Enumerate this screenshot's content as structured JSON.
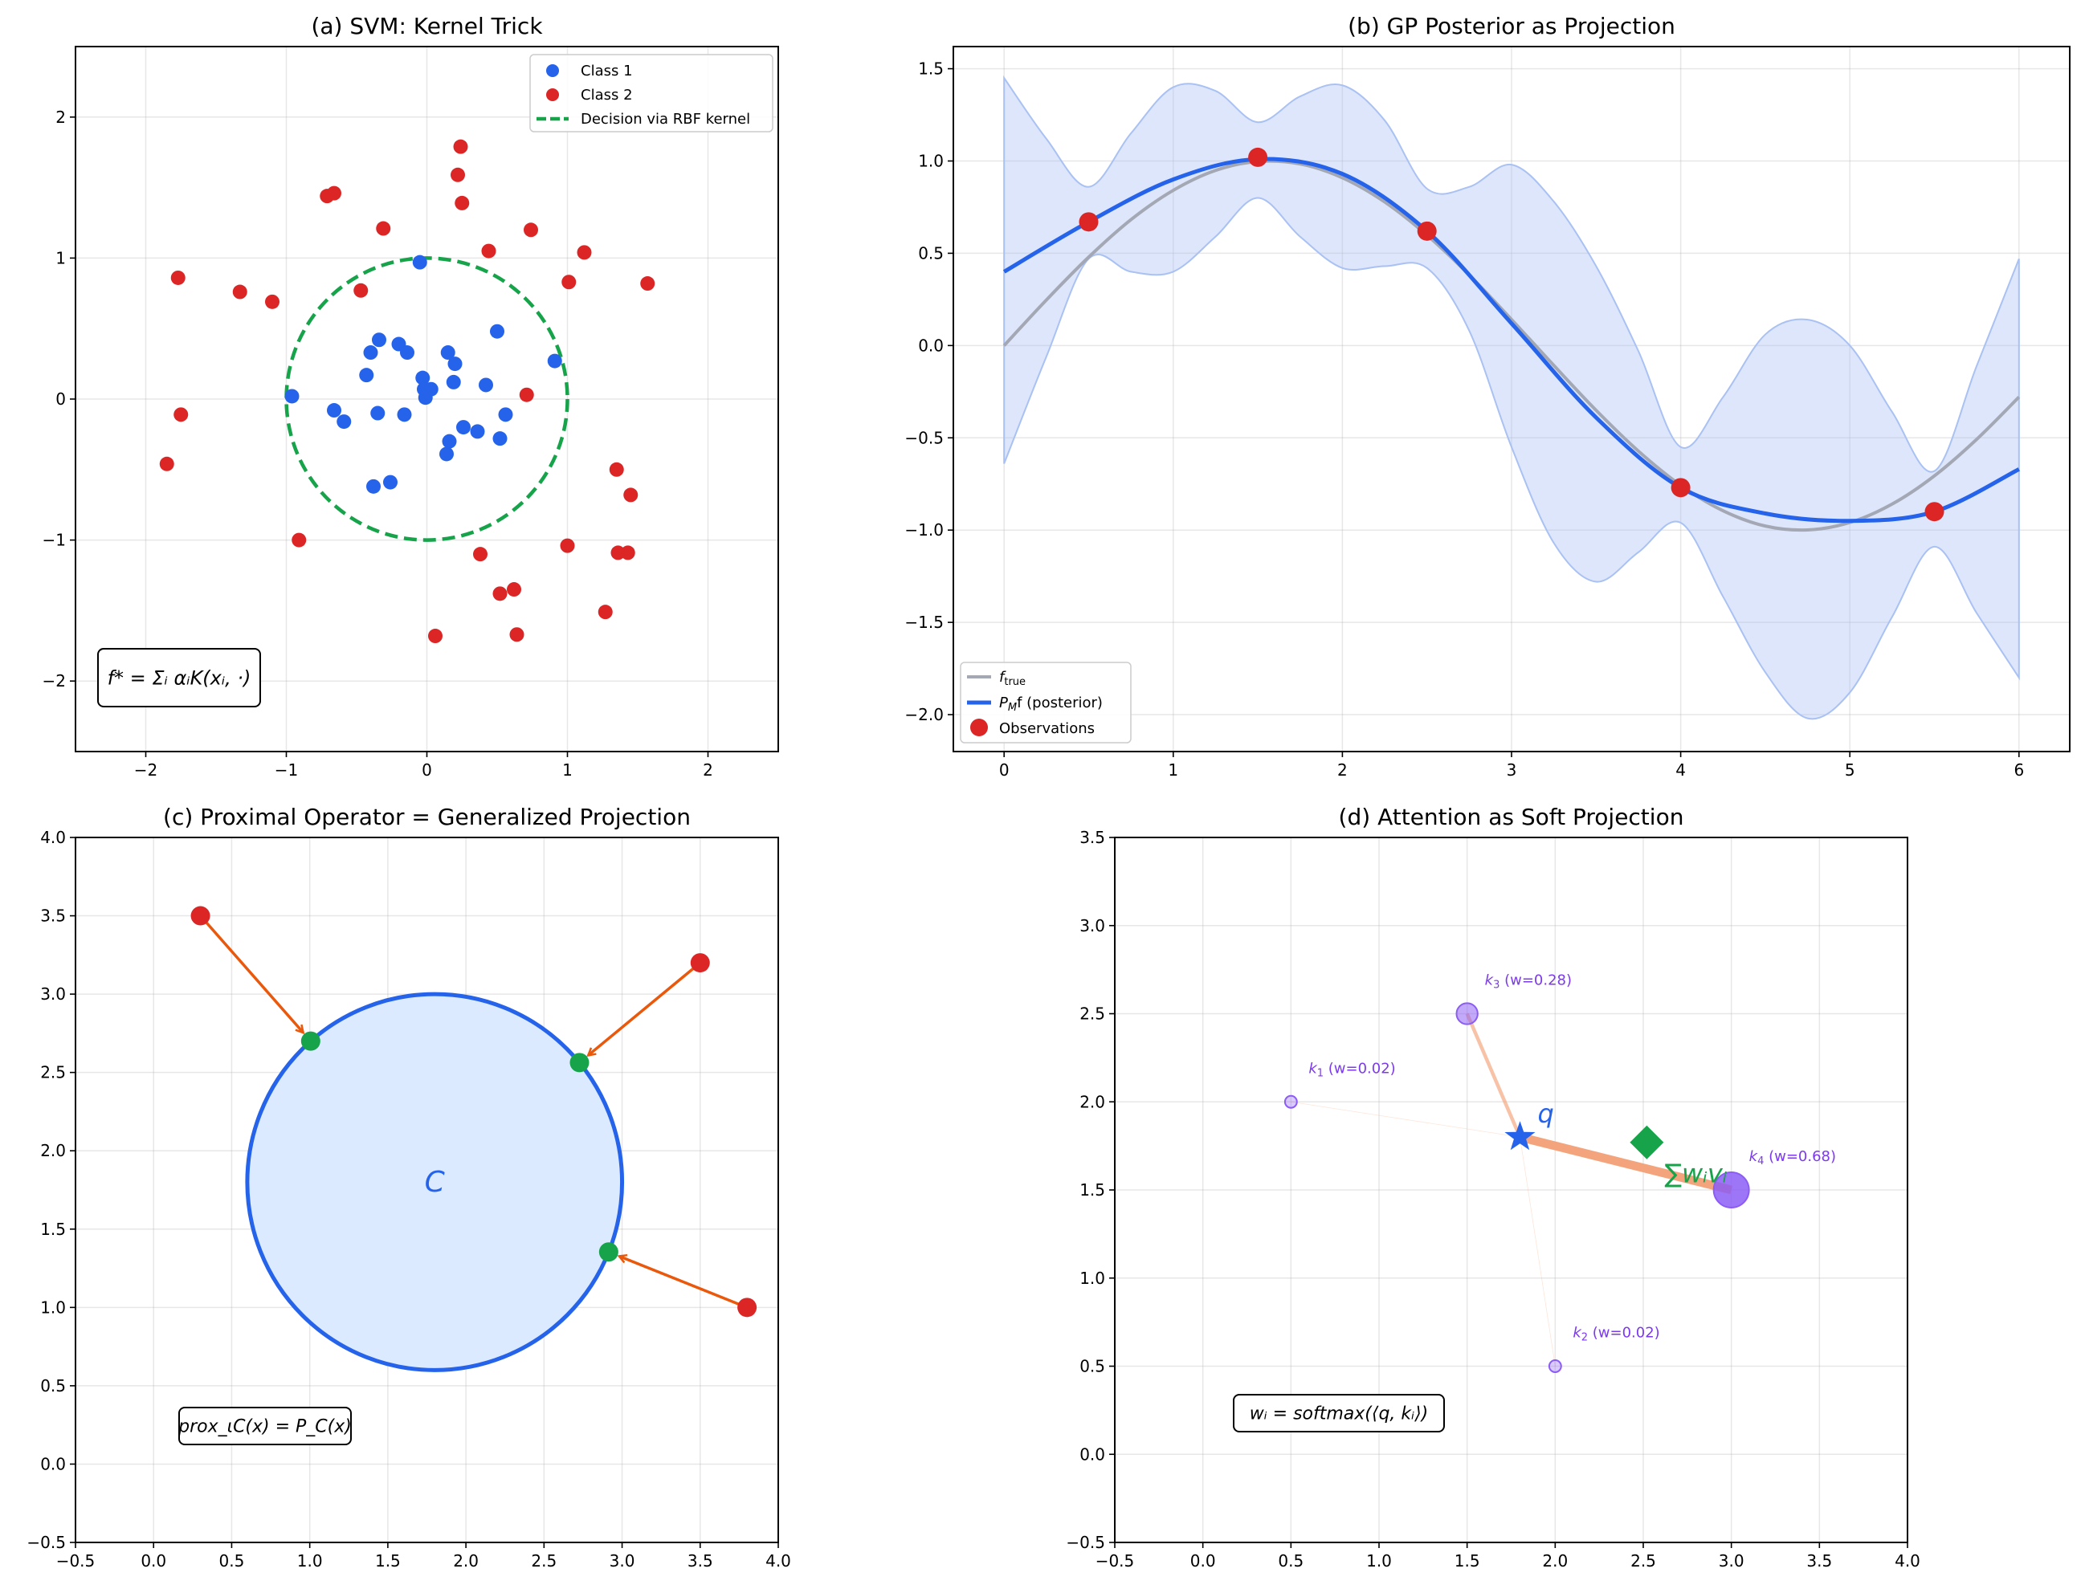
{
  "chart_data": [
    {
      "type": "scatter",
      "title": "(a) SVM: Kernel Trick",
      "xlim": [
        -2.5,
        2.5
      ],
      "ylim": [
        -2.5,
        2.5
      ],
      "xticks": [
        -2,
        -1,
        0,
        1,
        2
      ],
      "yticks": [
        -2,
        -1,
        0,
        1,
        2
      ],
      "xtick_labels": [
        "−2",
        "−1",
        "0",
        "1",
        "2"
      ],
      "ytick_labels": [
        "−2",
        "−1",
        "0",
        "1",
        "2"
      ],
      "grid": true,
      "legend_position": "top-right",
      "series": [
        {
          "name": "Class 1",
          "color": "#2563eb",
          "points": [
            [
              -0.05,
              0.97
            ],
            [
              0.5,
              0.48
            ],
            [
              0.91,
              0.27
            ],
            [
              -0.34,
              0.42
            ],
            [
              -0.4,
              0.33
            ],
            [
              -0.2,
              0.39
            ],
            [
              -0.14,
              0.33
            ],
            [
              0.15,
              0.33
            ],
            [
              0.2,
              0.25
            ],
            [
              -0.43,
              0.17
            ],
            [
              -0.03,
              0.15
            ],
            [
              0.19,
              0.12
            ],
            [
              0.42,
              0.1
            ],
            [
              -0.02,
              0.07
            ],
            [
              0.03,
              0.07
            ],
            [
              -0.01,
              0.01
            ],
            [
              -0.96,
              0.02
            ],
            [
              -0.66,
              -0.08
            ],
            [
              -0.59,
              -0.16
            ],
            [
              -0.35,
              -0.1
            ],
            [
              -0.16,
              -0.11
            ],
            [
              0.56,
              -0.11
            ],
            [
              0.26,
              -0.2
            ],
            [
              0.36,
              -0.23
            ],
            [
              0.16,
              -0.3
            ],
            [
              0.52,
              -0.28
            ],
            [
              0.14,
              -0.39
            ],
            [
              -0.38,
              -0.62
            ],
            [
              -0.26,
              -0.59
            ]
          ]
        },
        {
          "name": "Class 2",
          "color": "#dc2626",
          "points": [
            [
              0.24,
              1.79
            ],
            [
              0.22,
              1.59
            ],
            [
              0.25,
              1.39
            ],
            [
              -0.71,
              1.44
            ],
            [
              -0.66,
              1.46
            ],
            [
              -0.31,
              1.21
            ],
            [
              0.74,
              1.2
            ],
            [
              0.44,
              1.05
            ],
            [
              1.12,
              1.04
            ],
            [
              1.01,
              0.83
            ],
            [
              1.57,
              0.82
            ],
            [
              -1.77,
              0.86
            ],
            [
              -1.33,
              0.76
            ],
            [
              -1.1,
              0.69
            ],
            [
              -0.47,
              0.77
            ],
            [
              0.71,
              0.03
            ],
            [
              -1.75,
              -0.11
            ],
            [
              -1.85,
              -0.46
            ],
            [
              -0.91,
              -1.0
            ],
            [
              1.35,
              -0.5
            ],
            [
              1.45,
              -0.68
            ],
            [
              1.0,
              -1.04
            ],
            [
              0.38,
              -1.1
            ],
            [
              1.36,
              -1.09
            ],
            [
              1.43,
              -1.09
            ],
            [
              0.52,
              -1.38
            ],
            [
              0.62,
              -1.35
            ],
            [
              1.27,
              -1.51
            ],
            [
              0.06,
              -1.68
            ],
            [
              0.64,
              -1.67
            ]
          ]
        }
      ],
      "decision": {
        "name": "Decision via RBF kernel",
        "center": [
          0,
          0
        ],
        "radius": 1.0,
        "color": "#16a34a"
      },
      "annotation": "f* = Σᵢ αᵢK(xᵢ, ·)"
    },
    {
      "type": "line",
      "title": "(b) GP Posterior as Projection",
      "xlim": [
        -0.3,
        6.3
      ],
      "ylim": [
        -2.2,
        1.62
      ],
      "xticks": [
        0,
        1,
        2,
        3,
        4,
        5,
        6
      ],
      "yticks": [
        -2.0,
        -1.5,
        -1.0,
        -0.5,
        0.0,
        0.5,
        1.0,
        1.5
      ],
      "xtick_labels": [
        "0",
        "1",
        "2",
        "3",
        "4",
        "5",
        "6"
      ],
      "ytick_labels": [
        "−2.0",
        "−1.5",
        "−1.0",
        "−0.5",
        "0.0",
        "0.5",
        "1.0",
        "1.5"
      ],
      "grid": true,
      "legend_position": "bottom-left",
      "band": {
        "color": "#a9c1f3",
        "x": [
          0,
          0.25,
          0.5,
          0.75,
          1,
          1.25,
          1.5,
          1.75,
          2,
          2.25,
          2.5,
          2.75,
          3,
          3.25,
          3.5,
          3.75,
          4,
          4.25,
          4.5,
          4.75,
          5,
          5.25,
          5.5,
          5.75,
          6
        ],
        "upper": [
          1.45,
          1.12,
          0.86,
          1.15,
          1.4,
          1.38,
          1.21,
          1.35,
          1.41,
          1.22,
          0.85,
          0.86,
          0.98,
          0.78,
          0.43,
          -0.03,
          -0.55,
          -0.28,
          0.06,
          0.14,
          0.0,
          -0.36,
          -0.68,
          -0.11,
          0.47
        ],
        "lower": [
          -0.64,
          -0.06,
          0.47,
          0.4,
          0.4,
          0.59,
          0.8,
          0.59,
          0.42,
          0.43,
          0.42,
          0.08,
          -0.55,
          -1.07,
          -1.28,
          -1.12,
          -0.96,
          -1.36,
          -1.77,
          -2.02,
          -1.88,
          -1.47,
          -1.09,
          -1.45,
          -1.8
        ]
      },
      "series": [
        {
          "name": "f_true",
          "color": "#a3a8b4",
          "x": [
            0,
            0.25,
            0.5,
            0.75,
            1,
            1.25,
            1.5,
            1.75,
            2,
            2.25,
            2.5,
            2.75,
            3,
            3.25,
            3.5,
            3.75,
            4,
            4.25,
            4.5,
            4.75,
            5,
            5.25,
            5.5,
            5.75,
            6
          ],
          "y": [
            0,
            0.247,
            0.479,
            0.682,
            0.841,
            0.949,
            0.997,
            0.984,
            0.909,
            0.778,
            0.598,
            0.382,
            0.141,
            -0.108,
            -0.351,
            -0.572,
            -0.757,
            -0.895,
            -0.978,
            -0.999,
            -0.959,
            -0.859,
            -0.706,
            -0.508,
            -0.279
          ]
        },
        {
          "name": "P_M f (posterior)",
          "color": "#2563eb",
          "x": [
            0,
            0.5,
            1,
            1.5,
            2,
            2.5,
            3,
            3.5,
            4,
            4.5,
            5,
            5.5,
            6
          ],
          "y": [
            0.4,
            0.67,
            0.9,
            1.01,
            0.93,
            0.62,
            0.12,
            -0.39,
            -0.77,
            -0.91,
            -0.95,
            -0.9,
            -0.67
          ]
        },
        {
          "name": "Observations",
          "color": "#dc2626",
          "x": [
            0.5,
            1.5,
            2.5,
            4.0,
            5.5
          ],
          "y": [
            0.67,
            1.02,
            0.62,
            -0.77,
            -0.9
          ]
        }
      ],
      "legend": [
        {
          "main": "f",
          "sub": "true"
        },
        {
          "main": "P",
          "sub": "M",
          "rest": "f (posterior)"
        },
        {
          "main": "Observations"
        }
      ]
    },
    {
      "type": "scatter",
      "title": "(c) Proximal Operator = Generalized Projection",
      "xlim": [
        -0.5,
        4.0
      ],
      "ylim": [
        -0.5,
        4.0
      ],
      "xticks": [
        -0.5,
        0,
        0.5,
        1,
        1.5,
        2,
        2.5,
        3,
        3.5,
        4
      ],
      "yticks": [
        -0.5,
        0,
        0.5,
        1,
        1.5,
        2,
        2.5,
        3,
        3.5,
        4
      ],
      "xtick_labels": [
        "−0.5",
        "0.0",
        "0.5",
        "1.0",
        "1.5",
        "2.0",
        "2.5",
        "3.0",
        "3.5",
        "4.0"
      ],
      "ytick_labels": [
        "−0.5",
        "0.0",
        "0.5",
        "1.0",
        "1.5",
        "2.0",
        "2.5",
        "3.0",
        "3.5",
        "4.0"
      ],
      "grid": true,
      "set": {
        "label": "C",
        "center": [
          1.8,
          1.8
        ],
        "radius": 1.2,
        "fill": "#dbeafe",
        "edge": "#2563eb"
      },
      "points": [
        [
          0.3,
          3.5
        ],
        [
          3.5,
          3.2
        ],
        [
          3.8,
          1.0
        ]
      ],
      "projections": [
        [
          1.006,
          2.7
        ],
        [
          2.727,
          2.563
        ],
        [
          2.914,
          1.354
        ]
      ],
      "point_color": "#dc2626",
      "projection_color": "#16a34a",
      "arrow_color": "#ea580c",
      "annotation": "prox_ιC(x) = P_C(x)"
    },
    {
      "type": "scatter",
      "title": "(d) Attention as Soft Projection",
      "xlim": [
        -0.5,
        4.0
      ],
      "ylim": [
        -0.5,
        3.5
      ],
      "xticks": [
        -0.5,
        0,
        0.5,
        1,
        1.5,
        2,
        2.5,
        3,
        3.5,
        4
      ],
      "yticks": [
        -0.5,
        0,
        0.5,
        1,
        1.5,
        2,
        2.5,
        3,
        3.5
      ],
      "xtick_labels": [
        "−0.5",
        "0.0",
        "0.5",
        "1.0",
        "1.5",
        "2.0",
        "2.5",
        "3.0",
        "3.5",
        "4.0"
      ],
      "ytick_labels": [
        "−0.5",
        "0.0",
        "0.5",
        "1.0",
        "1.5",
        "2.0",
        "2.5",
        "3.0",
        "3.5"
      ],
      "grid": true,
      "query": {
        "label": "q",
        "point": [
          1.8,
          1.8
        ],
        "color": "#2563eb"
      },
      "keys": [
        {
          "label": "k",
          "index": "1",
          "weight_text": " (w=0.02)",
          "point": [
            0.5,
            2.0
          ],
          "w": 0.02
        },
        {
          "label": "k",
          "index": "2",
          "weight_text": " (w=0.02)",
          "point": [
            2.0,
            0.5
          ],
          "w": 0.02
        },
        {
          "label": "k",
          "index": "3",
          "weight_text": " (w=0.28)",
          "point": [
            1.5,
            2.5
          ],
          "w": 0.28
        },
        {
          "label": "k",
          "index": "4",
          "weight_text": " (w=0.68)",
          "point": [
            3.0,
            1.5
          ],
          "w": 0.68
        }
      ],
      "key_color": "#8b5cf6",
      "key_label_color": "#7c3aed",
      "line_color": "#f4a47c",
      "output": {
        "label": "∑wᵢvᵢ",
        "point": [
          2.52,
          1.77
        ],
        "color": "#16a34a"
      },
      "annotation": "wᵢ = softmax(⟨q, kᵢ⟩)"
    }
  ]
}
